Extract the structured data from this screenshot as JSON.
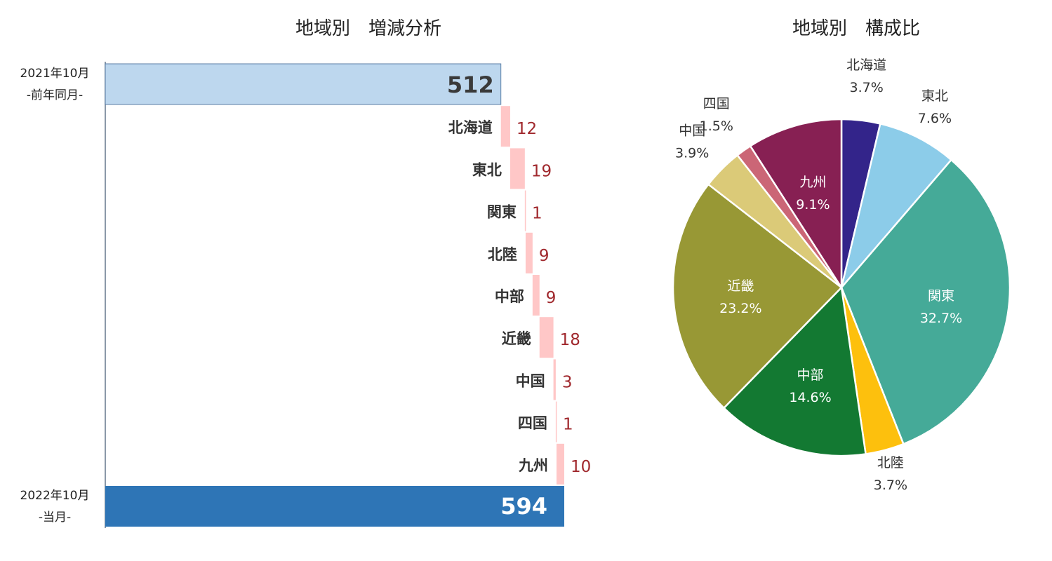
{
  "waterfall": {
    "title": "地域別　増減分析",
    "start": {
      "label_line1": "2021年10月",
      "label_line2": "-前年同月-",
      "value": 512
    },
    "end": {
      "label_line1": "2022年10月",
      "label_line2": "-当月-",
      "value": 594
    },
    "colors": {
      "start": "#bdd7ee",
      "end": "#2e75b6",
      "delta": "#ffc7c7",
      "delta_text": "#a0282d"
    }
  },
  "pie": {
    "title": "地域別　構成比"
  },
  "chart_data": [
    {
      "type": "bar",
      "subtype": "waterfall",
      "title": "地域別　増減分析",
      "categories": [
        "北海道",
        "東北",
        "関東",
        "北陸",
        "中部",
        "近畿",
        "中国",
        "四国",
        "九州"
      ],
      "values": [
        12,
        19,
        1,
        9,
        9,
        18,
        3,
        1,
        10
      ],
      "start_value": 512,
      "end_value": 594,
      "orientation": "horizontal"
    },
    {
      "type": "pie",
      "title": "地域別　構成比",
      "labels": [
        "北海道",
        "東北",
        "関東",
        "北陸",
        "中部",
        "近畿",
        "中国",
        "四国",
        "九州"
      ],
      "values": [
        3.7,
        7.6,
        32.7,
        3.7,
        14.6,
        23.2,
        3.9,
        1.5,
        9.1
      ],
      "value_labels": [
        "3.7%",
        "7.6%",
        "32.7%",
        "3.7%",
        "14.6%",
        "23.2%",
        "3.9%",
        "1.5%",
        "9.1%"
      ],
      "colors": [
        "#33248a",
        "#8ccce9",
        "#45aa98",
        "#fdc00d",
        "#137932",
        "#989835",
        "#dbca78",
        "#cb6676",
        "#872053"
      ],
      "label_colors": [
        "#333333",
        "#333333",
        "#ffffff",
        "#333333",
        "#ffffff",
        "#ffffff",
        "#333333",
        "#333333",
        "#ffffff"
      ]
    }
  ]
}
